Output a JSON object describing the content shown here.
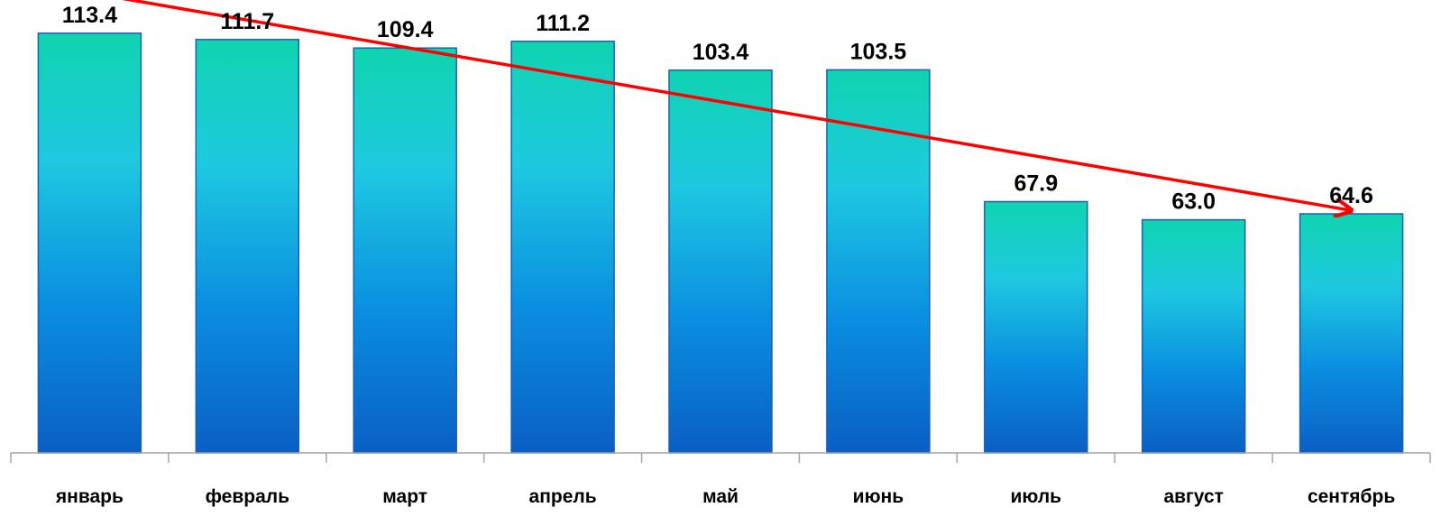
{
  "chart_data": {
    "type": "bar",
    "categories": [
      "январь",
      "февраль",
      "март",
      "апрель",
      "май",
      "июнь",
      "июль",
      "август",
      "сентябрь"
    ],
    "values": [
      113.4,
      111.7,
      109.4,
      111.2,
      103.4,
      103.5,
      67.9,
      63.0,
      64.6
    ],
    "value_labels": [
      "113.4",
      "111.7",
      "109.4",
      "111.2",
      "103.4",
      "103.5",
      "67.9",
      "63.0",
      "64.6"
    ],
    "ylim": [
      0,
      117.5
    ],
    "grid": false,
    "legend": "none",
    "data_labels": "above bars",
    "trend_arrow": {
      "from_category": "январь",
      "from_value": 124.3,
      "to_category": "сентябрь",
      "to_value": 65.5,
      "color": "#ff0000"
    },
    "colors": {
      "bar_top": "#0fd4b0",
      "bar_mid": "#1ec9e0",
      "bar_bottom": "#0a5fc4",
      "bar_border": "#1f5fb0",
      "axis": "#a6a6a6"
    }
  }
}
